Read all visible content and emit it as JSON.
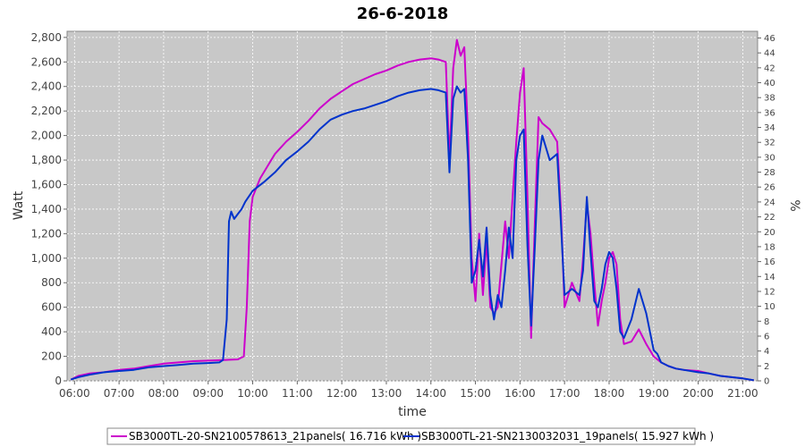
{
  "chart_data": {
    "type": "line",
    "title": "26-6-2018",
    "xlabel": "time",
    "ylabel": "Watt",
    "ylabel_right": "%",
    "x_ticks": [
      "06:00",
      "07:00",
      "08:00",
      "09:00",
      "10:00",
      "11:00",
      "12:00",
      "13:00",
      "14:00",
      "15:00",
      "16:00",
      "17:00",
      "18:00",
      "19:00",
      "20:00",
      "21:00"
    ],
    "y_ticks": [
      0,
      200,
      400,
      600,
      800,
      1000,
      1200,
      1400,
      1600,
      1800,
      2000,
      2200,
      2400,
      2600,
      2800
    ],
    "y_ticks_right": [
      0,
      2,
      4,
      6,
      8,
      10,
      12,
      14,
      16,
      18,
      20,
      22,
      24,
      26,
      28,
      30,
      32,
      34,
      36,
      38,
      40,
      42,
      44,
      46
    ],
    "xlim": [
      "05:50",
      "21:20"
    ],
    "ylim": [
      0,
      2850
    ],
    "ylim_right": [
      0,
      46.9
    ],
    "grid": true,
    "legend_position": "bottom",
    "series": [
      {
        "name": "SB3000TL-20-SN2100578613_21panels( 16.716 kWh )",
        "color": "#cc00cc",
        "points": [
          [
            "05:55",
            10
          ],
          [
            "06:05",
            40
          ],
          [
            "06:20",
            60
          ],
          [
            "06:40",
            70
          ],
          [
            "07:00",
            90
          ],
          [
            "07:20",
            100
          ],
          [
            "07:40",
            120
          ],
          [
            "08:00",
            140
          ],
          [
            "08:20",
            150
          ],
          [
            "08:40",
            160
          ],
          [
            "09:00",
            165
          ],
          [
            "09:20",
            170
          ],
          [
            "09:40",
            175
          ],
          [
            "09:48",
            200
          ],
          [
            "09:52",
            600
          ],
          [
            "09:56",
            1300
          ],
          [
            "10:00",
            1500
          ],
          [
            "10:10",
            1650
          ],
          [
            "10:20",
            1750
          ],
          [
            "10:30",
            1850
          ],
          [
            "10:45",
            1950
          ],
          [
            "11:00",
            2030
          ],
          [
            "11:15",
            2120
          ],
          [
            "11:30",
            2220
          ],
          [
            "11:45",
            2300
          ],
          [
            "12:00",
            2360
          ],
          [
            "12:15",
            2420
          ],
          [
            "12:30",
            2460
          ],
          [
            "12:45",
            2500
          ],
          [
            "13:00",
            2530
          ],
          [
            "13:15",
            2570
          ],
          [
            "13:30",
            2600
          ],
          [
            "13:45",
            2620
          ],
          [
            "14:00",
            2630
          ],
          [
            "14:10",
            2620
          ],
          [
            "14:20",
            2600
          ],
          [
            "14:25",
            1800
          ],
          [
            "14:30",
            2550
          ],
          [
            "14:35",
            2780
          ],
          [
            "14:40",
            2650
          ],
          [
            "14:45",
            2720
          ],
          [
            "14:50",
            2000
          ],
          [
            "14:55",
            1000
          ],
          [
            "15:00",
            650
          ],
          [
            "15:05",
            1200
          ],
          [
            "15:10",
            700
          ],
          [
            "15:15",
            1150
          ],
          [
            "15:20",
            600
          ],
          [
            "15:25",
            550
          ],
          [
            "15:30",
            600
          ],
          [
            "15:35",
            950
          ],
          [
            "15:40",
            1300
          ],
          [
            "15:45",
            1000
          ],
          [
            "15:50",
            1500
          ],
          [
            "15:55",
            1950
          ],
          [
            "16:00",
            2350
          ],
          [
            "16:05",
            2550
          ],
          [
            "16:10",
            1500
          ],
          [
            "16:15",
            350
          ],
          [
            "16:20",
            1300
          ],
          [
            "16:25",
            2150
          ],
          [
            "16:30",
            2100
          ],
          [
            "16:40",
            2050
          ],
          [
            "16:50",
            1950
          ],
          [
            "16:55",
            1400
          ],
          [
            "17:00",
            600
          ],
          [
            "17:10",
            800
          ],
          [
            "17:20",
            650
          ],
          [
            "17:25",
            1000
          ],
          [
            "17:30",
            1450
          ],
          [
            "17:35",
            1200
          ],
          [
            "17:40",
            800
          ],
          [
            "17:45",
            450
          ],
          [
            "17:50",
            650
          ],
          [
            "17:55",
            800
          ],
          [
            "18:00",
            1000
          ],
          [
            "18:05",
            1050
          ],
          [
            "18:10",
            950
          ],
          [
            "18:15",
            500
          ],
          [
            "18:20",
            300
          ],
          [
            "18:30",
            320
          ],
          [
            "18:40",
            420
          ],
          [
            "18:50",
            300
          ],
          [
            "19:00",
            200
          ],
          [
            "19:10",
            150
          ],
          [
            "19:20",
            120
          ],
          [
            "19:30",
            100
          ],
          [
            "19:40",
            90
          ],
          [
            "20:00",
            80
          ],
          [
            "20:15",
            60
          ],
          [
            "20:30",
            40
          ],
          [
            "20:45",
            30
          ],
          [
            "21:00",
            20
          ],
          [
            "21:15",
            5
          ]
        ]
      },
      {
        "name": "SB3000TL-21-SN2130032031_19panels( 15.927 kWh )",
        "color": "#0033cc",
        "points": [
          [
            "05:55",
            10
          ],
          [
            "06:05",
            30
          ],
          [
            "06:20",
            50
          ],
          [
            "06:40",
            70
          ],
          [
            "07:00",
            80
          ],
          [
            "07:20",
            90
          ],
          [
            "07:40",
            110
          ],
          [
            "08:00",
            120
          ],
          [
            "08:20",
            130
          ],
          [
            "08:40",
            140
          ],
          [
            "09:00",
            145
          ],
          [
            "09:15",
            150
          ],
          [
            "09:20",
            170
          ],
          [
            "09:25",
            500
          ],
          [
            "09:28",
            1300
          ],
          [
            "09:31",
            1380
          ],
          [
            "09:35",
            1320
          ],
          [
            "09:40",
            1360
          ],
          [
            "09:45",
            1400
          ],
          [
            "09:50",
            1460
          ],
          [
            "10:00",
            1550
          ],
          [
            "10:15",
            1620
          ],
          [
            "10:30",
            1700
          ],
          [
            "10:45",
            1800
          ],
          [
            "11:00",
            1870
          ],
          [
            "11:15",
            1950
          ],
          [
            "11:30",
            2050
          ],
          [
            "11:45",
            2130
          ],
          [
            "12:00",
            2170
          ],
          [
            "12:15",
            2200
          ],
          [
            "12:30",
            2220
          ],
          [
            "12:45",
            2250
          ],
          [
            "13:00",
            2280
          ],
          [
            "13:15",
            2320
          ],
          [
            "13:30",
            2350
          ],
          [
            "13:45",
            2370
          ],
          [
            "14:00",
            2380
          ],
          [
            "14:10",
            2370
          ],
          [
            "14:20",
            2350
          ],
          [
            "14:25",
            1700
          ],
          [
            "14:30",
            2300
          ],
          [
            "14:35",
            2400
          ],
          [
            "14:40",
            2350
          ],
          [
            "14:45",
            2380
          ],
          [
            "14:50",
            1800
          ],
          [
            "14:55",
            800
          ],
          [
            "15:00",
            900
          ],
          [
            "15:05",
            1150
          ],
          [
            "15:10",
            850
          ],
          [
            "15:15",
            1250
          ],
          [
            "15:20",
            700
          ],
          [
            "15:25",
            500
          ],
          [
            "15:30",
            700
          ],
          [
            "15:35",
            600
          ],
          [
            "15:40",
            900
          ],
          [
            "15:45",
            1250
          ],
          [
            "15:50",
            1000
          ],
          [
            "15:55",
            1800
          ],
          [
            "16:00",
            2000
          ],
          [
            "16:05",
            2050
          ],
          [
            "16:10",
            1100
          ],
          [
            "16:15",
            450
          ],
          [
            "16:20",
            1100
          ],
          [
            "16:25",
            1800
          ],
          [
            "16:30",
            2000
          ],
          [
            "16:40",
            1800
          ],
          [
            "16:50",
            1850
          ],
          [
            "16:55",
            1300
          ],
          [
            "17:00",
            700
          ],
          [
            "17:10",
            750
          ],
          [
            "17:20",
            700
          ],
          [
            "17:25",
            900
          ],
          [
            "17:30",
            1500
          ],
          [
            "17:35",
            1050
          ],
          [
            "17:40",
            650
          ],
          [
            "17:45",
            600
          ],
          [
            "17:50",
            750
          ],
          [
            "17:55",
            950
          ],
          [
            "18:00",
            1050
          ],
          [
            "18:05",
            1000
          ],
          [
            "18:10",
            750
          ],
          [
            "18:15",
            400
          ],
          [
            "18:20",
            350
          ],
          [
            "18:30",
            500
          ],
          [
            "18:40",
            750
          ],
          [
            "18:50",
            550
          ],
          [
            "19:00",
            250
          ],
          [
            "19:05",
            220
          ],
          [
            "19:10",
            150
          ],
          [
            "19:20",
            120
          ],
          [
            "19:30",
            100
          ],
          [
            "19:40",
            90
          ],
          [
            "20:00",
            70
          ],
          [
            "20:15",
            60
          ],
          [
            "20:30",
            40
          ],
          [
            "20:45",
            30
          ],
          [
            "21:00",
            20
          ],
          [
            "21:15",
            5
          ]
        ]
      }
    ]
  }
}
